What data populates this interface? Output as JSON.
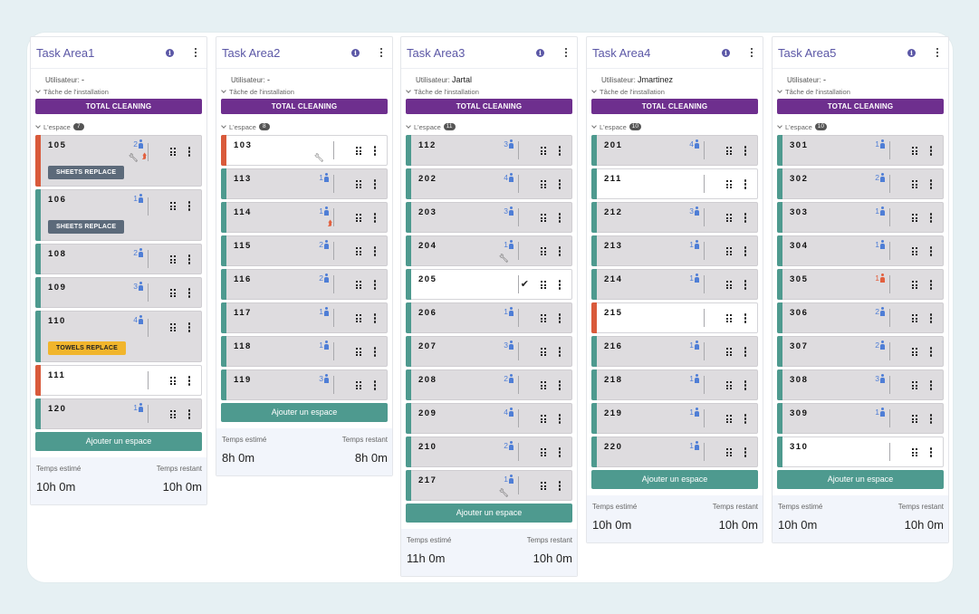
{
  "columns": [
    {
      "title": "Task Area1",
      "user_label": "Utilisateur:",
      "user_value": "-",
      "facility_task_label": "Tâche de l'installation",
      "total_cleaning": "TOTAL CLEANING",
      "space_label": "L'espace",
      "space_count": "7",
      "rooms": [
        {
          "num": "105",
          "occ": "2",
          "stripe": "red",
          "bg": "gray",
          "wrench": true,
          "flag": true,
          "tag": "SHEETS REPLACE",
          "tag_color": "gray"
        },
        {
          "num": "106",
          "occ": "1",
          "stripe": "green",
          "bg": "gray",
          "tag": "SHEETS REPLACE",
          "tag_color": "gray"
        },
        {
          "num": "108",
          "occ": "2",
          "stripe": "green",
          "bg": "gray"
        },
        {
          "num": "109",
          "occ": "3",
          "stripe": "green",
          "bg": "gray"
        },
        {
          "num": "110",
          "occ": "4",
          "stripe": "green",
          "bg": "gray",
          "tag": "TOWELS REPLACE",
          "tag_color": "yellow"
        },
        {
          "num": "111",
          "occ": "",
          "stripe": "red",
          "bg": "white"
        },
        {
          "num": "120",
          "occ": "1",
          "stripe": "green",
          "bg": "gray"
        }
      ],
      "add_label": "Ajouter un espace",
      "estimated_label": "Temps estimé",
      "remaining_label": "Temps restant",
      "estimated_value": "10h 0m",
      "remaining_value": "10h 0m"
    },
    {
      "title": "Task Area2",
      "user_label": "Utilisateur:",
      "user_value": "-",
      "facility_task_label": "Tâche de l'installation",
      "total_cleaning": "TOTAL CLEANING",
      "space_label": "L'espace",
      "space_count": "8",
      "rooms": [
        {
          "num": "103",
          "occ": "",
          "stripe": "red",
          "bg": "white",
          "wrench": true
        },
        {
          "num": "113",
          "occ": "1",
          "stripe": "green",
          "bg": "gray"
        },
        {
          "num": "114",
          "occ": "1",
          "stripe": "green",
          "bg": "gray",
          "flag": true
        },
        {
          "num": "115",
          "occ": "2",
          "stripe": "green",
          "bg": "gray"
        },
        {
          "num": "116",
          "occ": "2",
          "stripe": "green",
          "bg": "gray"
        },
        {
          "num": "117",
          "occ": "1",
          "stripe": "green",
          "bg": "gray"
        },
        {
          "num": "118",
          "occ": "1",
          "stripe": "green",
          "bg": "gray"
        },
        {
          "num": "119",
          "occ": "3",
          "stripe": "green",
          "bg": "gray"
        }
      ],
      "add_label": "Ajouter un espace",
      "estimated_label": "Temps estimé",
      "remaining_label": "Temps restant",
      "estimated_value": "8h 0m",
      "remaining_value": "8h 0m"
    },
    {
      "title": "Task Area3",
      "user_label": "Utilisateur:",
      "user_value": "Jartal",
      "facility_task_label": "Tâche de l'installation",
      "total_cleaning": "TOTAL CLEANING",
      "space_label": "L'espace",
      "space_count": "11",
      "rooms": [
        {
          "num": "112",
          "occ": "3",
          "stripe": "green",
          "bg": "gray"
        },
        {
          "num": "202",
          "occ": "4",
          "stripe": "green",
          "bg": "gray"
        },
        {
          "num": "203",
          "occ": "3",
          "stripe": "green",
          "bg": "gray"
        },
        {
          "num": "204",
          "occ": "1",
          "stripe": "green",
          "bg": "gray",
          "wrench": true
        },
        {
          "num": "205",
          "occ": "",
          "stripe": "green",
          "bg": "white",
          "check": true
        },
        {
          "num": "206",
          "occ": "1",
          "stripe": "green",
          "bg": "gray"
        },
        {
          "num": "207",
          "occ": "3",
          "stripe": "green",
          "bg": "gray"
        },
        {
          "num": "208",
          "occ": "2",
          "stripe": "green",
          "bg": "gray"
        },
        {
          "num": "209",
          "occ": "4",
          "stripe": "green",
          "bg": "gray"
        },
        {
          "num": "210",
          "occ": "2",
          "stripe": "green",
          "bg": "gray"
        },
        {
          "num": "217",
          "occ": "1",
          "stripe": "green",
          "bg": "gray",
          "wrench": true
        }
      ],
      "add_label": "Ajouter un espace",
      "estimated_label": "Temps estimé",
      "remaining_label": "Temps restant",
      "estimated_value": "11h 0m",
      "remaining_value": "10h 0m"
    },
    {
      "title": "Task Area4",
      "user_label": "Utilisateur:",
      "user_value": "Jmartinez",
      "facility_task_label": "Tâche de l'installation",
      "total_cleaning": "TOTAL CLEANING",
      "space_label": "L'espace",
      "space_count": "10",
      "rooms": [
        {
          "num": "201",
          "occ": "4",
          "stripe": "green",
          "bg": "gray"
        },
        {
          "num": "211",
          "occ": "",
          "stripe": "green",
          "bg": "white"
        },
        {
          "num": "212",
          "occ": "3",
          "stripe": "green",
          "bg": "gray"
        },
        {
          "num": "213",
          "occ": "1",
          "stripe": "green",
          "bg": "gray"
        },
        {
          "num": "214",
          "occ": "1",
          "stripe": "green",
          "bg": "gray"
        },
        {
          "num": "215",
          "occ": "",
          "stripe": "red",
          "bg": "white"
        },
        {
          "num": "216",
          "occ": "1",
          "stripe": "green",
          "bg": "gray"
        },
        {
          "num": "218",
          "occ": "1",
          "stripe": "green",
          "bg": "gray"
        },
        {
          "num": "219",
          "occ": "1",
          "stripe": "green",
          "bg": "gray"
        },
        {
          "num": "220",
          "occ": "1",
          "stripe": "green",
          "bg": "gray"
        }
      ],
      "add_label": "Ajouter un espace",
      "estimated_label": "Temps estimé",
      "remaining_label": "Temps restant",
      "estimated_value": "10h 0m",
      "remaining_value": "10h 0m"
    },
    {
      "title": "Task Area5",
      "user_label": "Utilisateur:",
      "user_value": "-",
      "facility_task_label": "Tâche de l'installation",
      "total_cleaning": "TOTAL CLEANING",
      "space_label": "L'espace",
      "space_count": "10",
      "rooms": [
        {
          "num": "301",
          "occ": "1",
          "stripe": "green",
          "bg": "gray"
        },
        {
          "num": "302",
          "occ": "2",
          "stripe": "green",
          "bg": "gray"
        },
        {
          "num": "303",
          "occ": "1",
          "stripe": "green",
          "bg": "gray"
        },
        {
          "num": "304",
          "occ": "1",
          "stripe": "green",
          "bg": "gray"
        },
        {
          "num": "305",
          "occ": "1",
          "occ_color": "red",
          "stripe": "green",
          "bg": "gray"
        },
        {
          "num": "306",
          "occ": "2",
          "stripe": "green",
          "bg": "gray"
        },
        {
          "num": "307",
          "occ": "2",
          "stripe": "green",
          "bg": "gray"
        },
        {
          "num": "308",
          "occ": "3",
          "stripe": "green",
          "bg": "gray"
        },
        {
          "num": "309",
          "occ": "1",
          "stripe": "green",
          "bg": "gray"
        },
        {
          "num": "310",
          "occ": "",
          "stripe": "green",
          "bg": "white"
        }
      ],
      "add_label": "Ajouter un espace",
      "estimated_label": "Temps estimé",
      "remaining_label": "Temps restant",
      "estimated_value": "10h 0m",
      "remaining_value": "10h 0m"
    }
  ],
  "icons": {
    "info": "info-icon",
    "menu": "kebab-menu-icon",
    "drag": "drag-handle-icon",
    "wrench": "wrench-icon",
    "priority": "priority-chevron-icon",
    "person": "person-icon",
    "check": "check-icon"
  },
  "colors": {
    "title": "#5b57a6",
    "total_cleaning_bg": "#6e2f8e",
    "add_button_bg": "#4e9a8f",
    "stripe_green": "#4e9a8f",
    "stripe_red": "#d95a3b",
    "occupancy_blue": "#4f7ed6",
    "tag_gray": "#5c6a7a",
    "tag_yellow": "#f1b52c"
  }
}
